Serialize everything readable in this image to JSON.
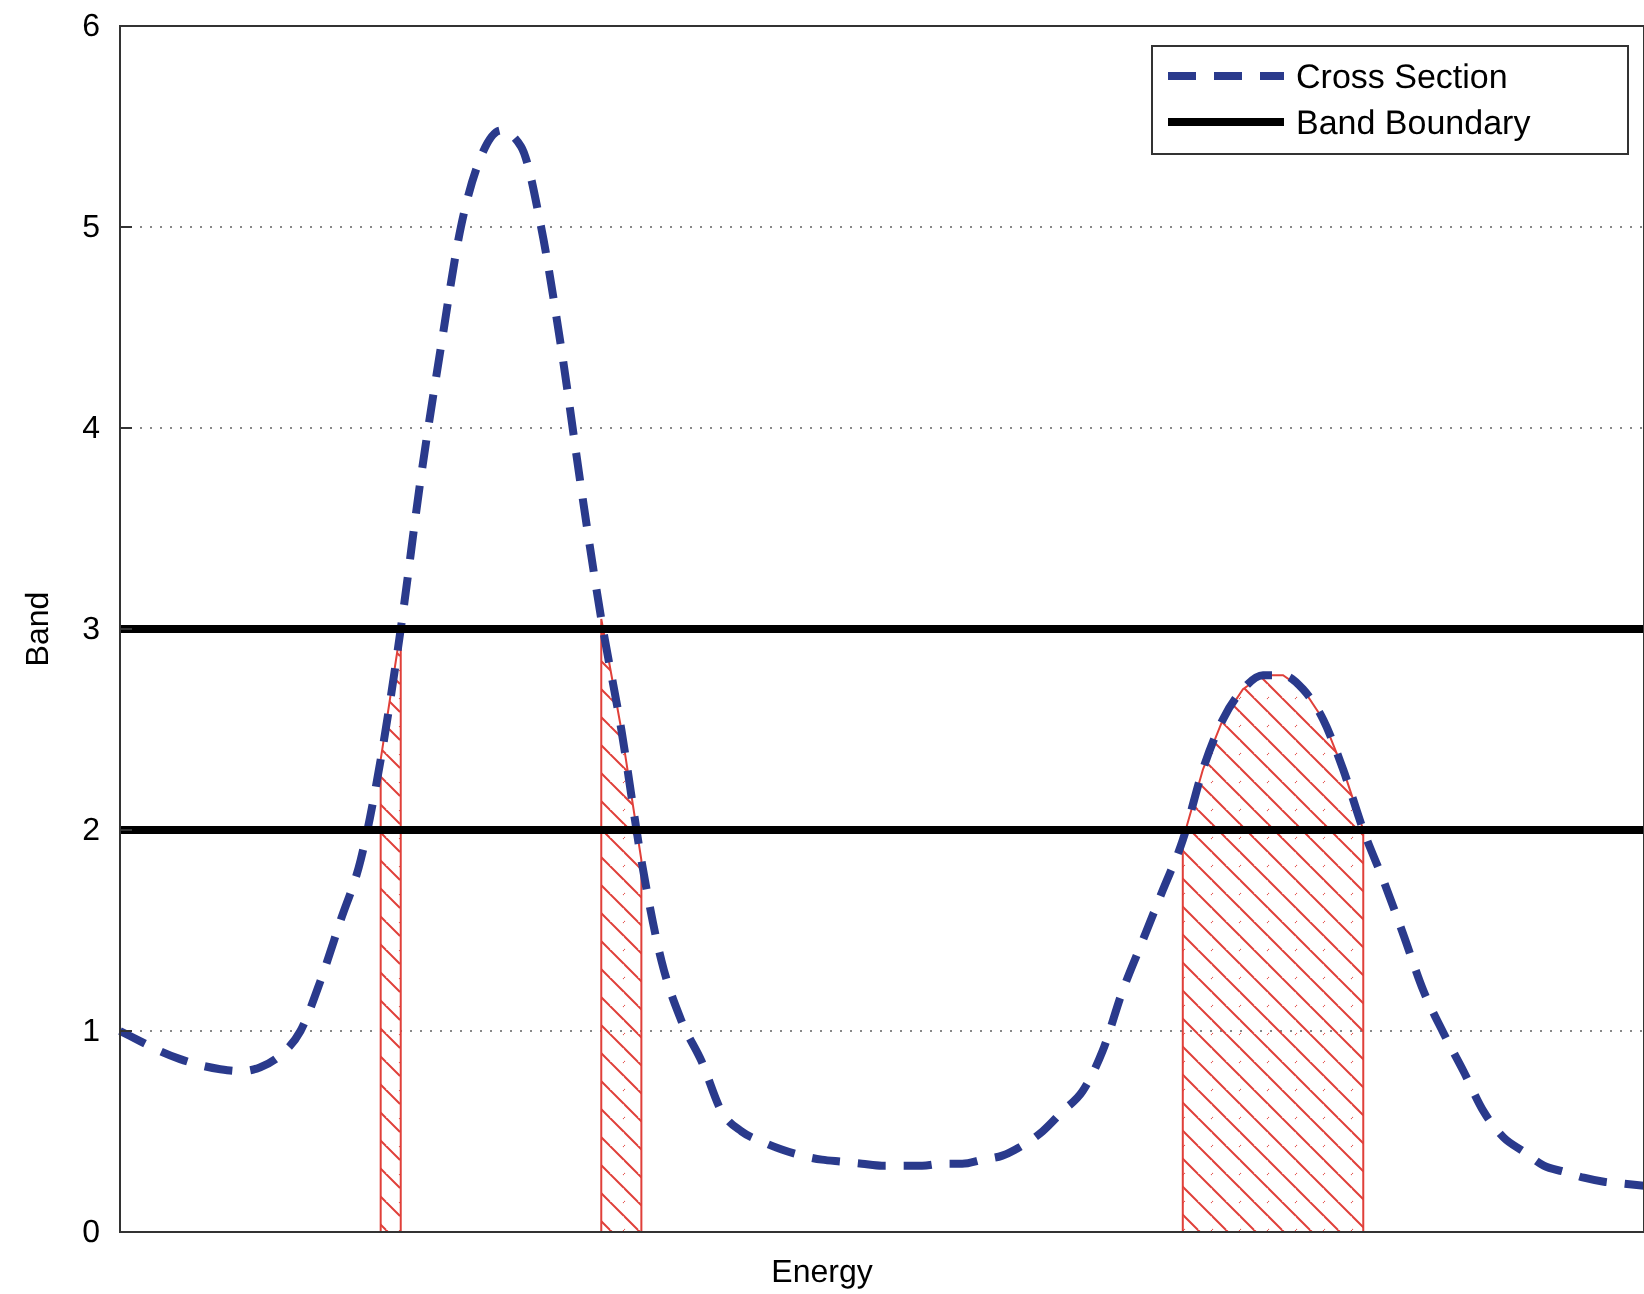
{
  "chart_data": {
    "type": "line",
    "xlabel": "Energy",
    "ylabel": "Band",
    "categories": [
      null,
      null,
      null,
      null,
      null,
      null,
      null,
      null,
      null,
      null,
      null,
      null,
      null,
      null,
      null,
      null,
      null,
      null,
      null,
      null,
      null,
      null,
      null,
      null,
      null,
      null,
      null,
      null,
      null,
      null,
      null,
      null,
      null,
      null,
      null,
      null,
      null,
      null,
      null,
      null,
      null,
      null,
      null,
      null,
      null,
      null,
      null,
      null,
      null,
      null,
      null,
      null,
      null,
      null,
      null,
      null,
      null,
      null,
      null,
      null,
      null,
      null,
      null,
      null,
      null,
      null,
      null,
      null,
      null,
      null,
      null,
      null,
      null,
      null,
      null,
      null,
      null
    ],
    "ylim": [
      0,
      6
    ],
    "yticks": [
      0,
      1,
      2,
      3,
      4,
      5,
      6
    ],
    "grid": "y",
    "tick_labels": "y",
    "legend": "top right",
    "series": [
      {
        "type": "area",
        "color": "#e0403a",
        "values": [
          null,
          null,
          null,
          null,
          null,
          null,
          null,
          null,
          null,
          null,
          null,
          null,
          null,
          2.35,
          3.0,
          null,
          null,
          null,
          null,
          null,
          null,
          null,
          null,
          null,
          null,
          null,
          null,
          null,
          null,
          null,
          null,
          null,
          null,
          null,
          null,
          null,
          null,
          null,
          null,
          null,
          null,
          null,
          null,
          null,
          null,
          null,
          null,
          null,
          null,
          null,
          null,
          null,
          null,
          1.95,
          2.3,
          2.55,
          2.7,
          2.77,
          2.77,
          2.7,
          2.55,
          2.3,
          2.0,
          null,
          null,
          null,
          null,
          null,
          null,
          null,
          null,
          null,
          null,
          null,
          null,
          null,
          null
        ]
      },
      {
        "type": "area",
        "color": "#e0403a",
        "values": [
          null,
          null,
          null,
          null,
          null,
          null,
          null,
          null,
          null,
          null,
          null,
          null,
          null,
          null,
          null,
          null,
          null,
          null,
          null,
          null,
          null,
          null,
          null,
          null,
          3.05,
          2.5,
          1.85,
          null,
          null,
          null,
          null,
          null,
          null,
          null,
          null,
          null,
          null,
          null,
          null,
          null,
          null,
          null,
          null,
          null,
          null,
          null,
          null,
          null,
          null,
          null,
          null,
          null,
          null,
          null,
          null,
          null,
          null,
          null,
          null,
          null,
          null,
          null,
          null,
          null,
          null,
          null,
          null,
          null,
          null,
          null,
          null,
          null,
          null,
          null,
          null,
          null,
          null
        ]
      },
      {
        "name": "Cross Section",
        "line_style": "dashed",
        "color": "#2a3a8c",
        "values": [
          1.0,
          0.95,
          0.9,
          0.86,
          0.83,
          0.81,
          0.8,
          0.82,
          0.88,
          1.0,
          1.25,
          1.55,
          1.85,
          2.35,
          3.0,
          3.75,
          4.4,
          5.0,
          5.35,
          5.48,
          5.4,
          5.0,
          4.4,
          3.7,
          3.05,
          2.5,
          1.85,
          1.35,
          1.05,
          0.85,
          0.6,
          0.5,
          0.45,
          0.41,
          0.38,
          0.36,
          0.35,
          0.34,
          0.33,
          0.33,
          0.33,
          0.34,
          0.34,
          0.36,
          0.38,
          0.43,
          0.5,
          0.6,
          0.7,
          0.9,
          1.2,
          1.45,
          1.7,
          1.95,
          2.3,
          2.55,
          2.7,
          2.77,
          2.77,
          2.7,
          2.55,
          2.3,
          2.0,
          1.75,
          1.48,
          1.2,
          0.99,
          0.8,
          0.6,
          0.47,
          0.4,
          0.33,
          0.3,
          0.27,
          0.25,
          0.24,
          0.23
        ]
      },
      {
        "name": "Band Boundary",
        "line_style": "solid",
        "color": "#000000",
        "values": [
          3,
          3,
          3,
          3,
          3,
          3,
          3,
          3,
          3,
          3,
          3,
          3,
          3,
          3,
          3,
          3,
          3,
          3,
          3,
          3,
          3,
          3,
          3,
          3,
          3,
          3,
          3,
          3,
          3,
          3,
          3,
          3,
          3,
          3,
          3,
          3,
          3,
          3,
          3,
          3,
          3,
          3,
          3,
          3,
          3,
          3,
          3,
          3,
          3,
          3,
          3,
          3,
          3,
          3,
          3,
          3,
          3,
          3,
          3,
          3,
          3,
          3,
          3,
          3,
          3,
          3,
          3,
          3,
          3,
          3,
          3,
          3,
          3,
          3,
          3,
          3,
          3
        ]
      },
      {
        "line_style": "solid",
        "color": "#000000",
        "values": [
          2,
          2,
          2,
          2,
          2,
          2,
          2,
          2,
          2,
          2,
          2,
          2,
          2,
          2,
          2,
          2,
          2,
          2,
          2,
          2,
          2,
          2,
          2,
          2,
          2,
          2,
          2,
          2,
          2,
          2,
          2,
          2,
          2,
          2,
          2,
          2,
          2,
          2,
          2,
          2,
          2,
          2,
          2,
          2,
          2,
          2,
          2,
          2,
          2,
          2,
          2,
          2,
          2,
          2,
          2,
          2,
          2,
          2,
          2,
          2,
          2,
          2,
          2,
          2,
          2,
          2,
          2,
          2,
          2,
          2,
          2,
          2,
          2,
          2,
          2,
          2,
          2
        ]
      }
    ]
  }
}
